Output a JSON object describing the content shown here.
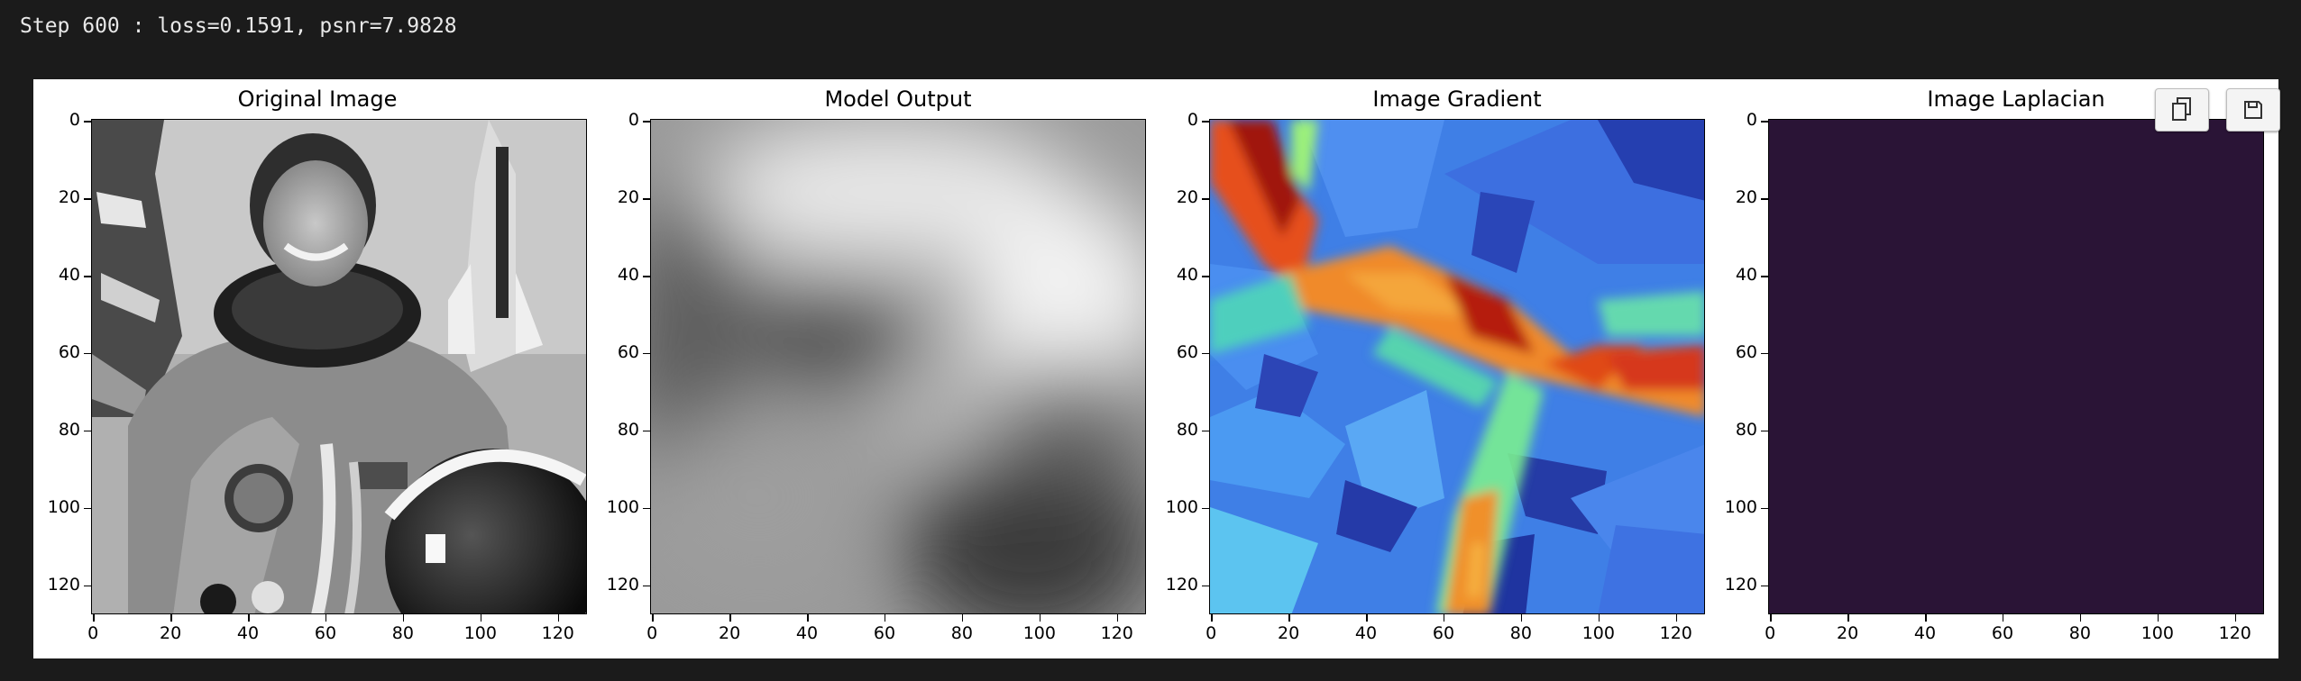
{
  "stdout_line": "Step 600 : loss=0.1591, psnr=7.9828",
  "toolbar": {
    "copy_icon": "copy-icon",
    "save_icon": "save-icon"
  },
  "panels": [
    {
      "title": "Original Image",
      "colormap": "gray",
      "yticks": [
        "0",
        "20",
        "40",
        "60",
        "80",
        "100",
        "120"
      ],
      "xticks": [
        "0",
        "20",
        "40",
        "60",
        "80",
        "100",
        "120"
      ]
    },
    {
      "title": "Model Output",
      "colormap": "gray",
      "yticks": [
        "0",
        "20",
        "40",
        "60",
        "80",
        "100",
        "120"
      ],
      "xticks": [
        "0",
        "20",
        "40",
        "60",
        "80",
        "100",
        "120"
      ]
    },
    {
      "title": "Image Gradient",
      "colormap": "jet",
      "yticks": [
        "0",
        "20",
        "40",
        "60",
        "80",
        "100",
        "120"
      ],
      "xticks": [
        "0",
        "20",
        "40",
        "60",
        "80",
        "100",
        "120"
      ]
    },
    {
      "title": "Image Laplacian",
      "colormap": "viridis",
      "yticks": [
        "0",
        "20",
        "40",
        "60",
        "80",
        "100",
        "120"
      ],
      "xticks": [
        "0",
        "20",
        "40",
        "60",
        "80",
        "100",
        "120"
      ]
    }
  ],
  "colors": {
    "laplacian_fill": "#2a1436",
    "figure_bg": "#ffffff",
    "page_bg": "#1b1b1b"
  }
}
